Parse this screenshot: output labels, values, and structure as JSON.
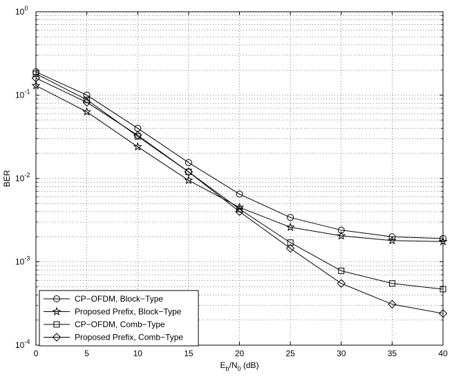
{
  "chart_data": {
    "type": "line",
    "title": "",
    "xlabel": {
      "main": "E",
      "sub1": "b",
      "mid": "/N",
      "sub2": "0",
      "tail": " (dB)"
    },
    "ylabel": "BER",
    "x_scale": "linear",
    "y_scale": "log",
    "xlim": [
      0,
      40
    ],
    "ylim": [
      0.0001,
      1
    ],
    "x_ticks": [
      "0",
      "5",
      "10",
      "15",
      "20",
      "25",
      "30",
      "35",
      "40"
    ],
    "y_ticks": [
      {
        "base": "10",
        "exp": "-4",
        "value": 0.0001
      },
      {
        "base": "10",
        "exp": "-3",
        "value": 0.001
      },
      {
        "base": "10",
        "exp": "-2",
        "value": 0.01
      },
      {
        "base": "10",
        "exp": "-1",
        "value": 0.1
      },
      {
        "base": "10",
        "exp": "0",
        "value": 1
      }
    ],
    "grid": true,
    "legend_position": "bottom-left",
    "x": [
      0,
      5,
      10,
      15,
      20,
      25,
      30,
      35,
      40
    ],
    "series": [
      {
        "name": "CP−OFDM, Block−Type",
        "marker": "circle",
        "values": [
          0.19,
          0.1,
          0.04,
          0.0155,
          0.0065,
          0.0034,
          0.0024,
          0.002,
          0.0019
        ]
      },
      {
        "name": "Proposed Prefix, Block−Type",
        "marker": "star",
        "values": [
          0.13,
          0.063,
          0.024,
          0.0095,
          0.0045,
          0.0026,
          0.00205,
          0.0018,
          0.00175
        ]
      },
      {
        "name": "CP−OFDM, Comb−Type",
        "marker": "square",
        "values": [
          0.18,
          0.088,
          0.032,
          0.012,
          0.0043,
          0.0017,
          0.00078,
          0.00055,
          0.00047
        ]
      },
      {
        "name": "Proposed Prefix, Comb−Type",
        "marker": "diamond",
        "values": [
          0.16,
          0.082,
          0.033,
          0.012,
          0.004,
          0.00145,
          0.00055,
          0.00031,
          0.00024
        ]
      }
    ],
    "line_color": "#000000"
  }
}
